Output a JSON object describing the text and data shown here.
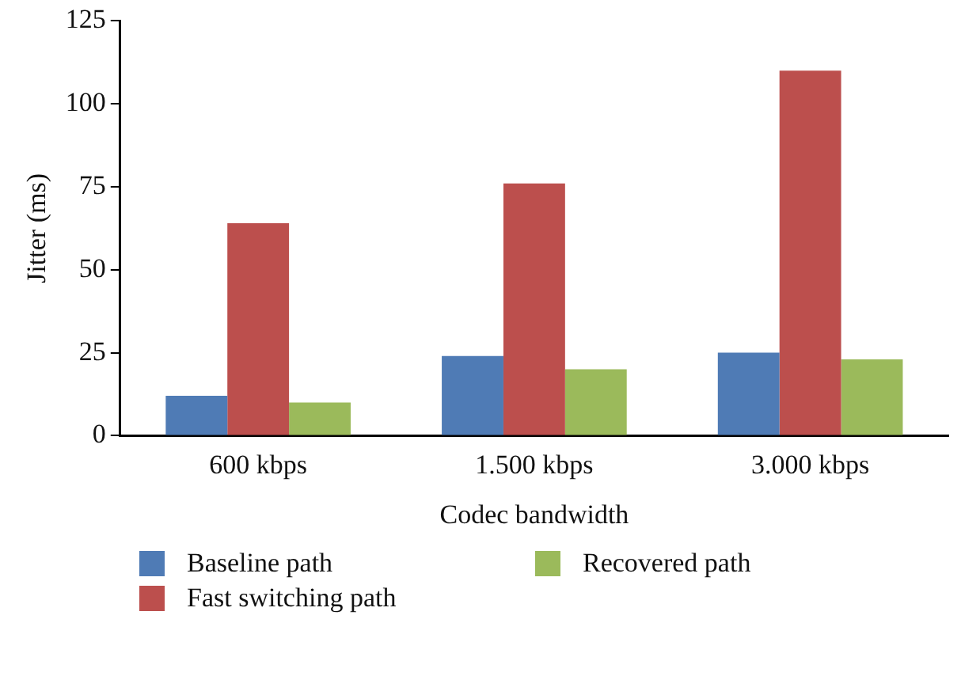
{
  "chart_data": {
    "type": "bar",
    "xlabel": "Codec bandwidth",
    "ylabel": "Jitter (ms)",
    "categories": [
      "600 kbps",
      "1.500 kbps",
      "3.000 kbps"
    ],
    "series": [
      {
        "name": "Baseline path",
        "color": "#4f7bb5",
        "values": [
          12,
          24,
          25
        ]
      },
      {
        "name": "Fast switching path",
        "color": "#bc4f4d",
        "values": [
          64,
          76,
          110
        ]
      },
      {
        "name": "Recovered path",
        "color": "#9bba5b",
        "values": [
          10,
          20,
          23
        ]
      }
    ],
    "ylim": [
      0,
      125
    ],
    "yticks": [
      0,
      25,
      50,
      75,
      100,
      125
    ],
    "grid": false,
    "legend": "bottom"
  }
}
